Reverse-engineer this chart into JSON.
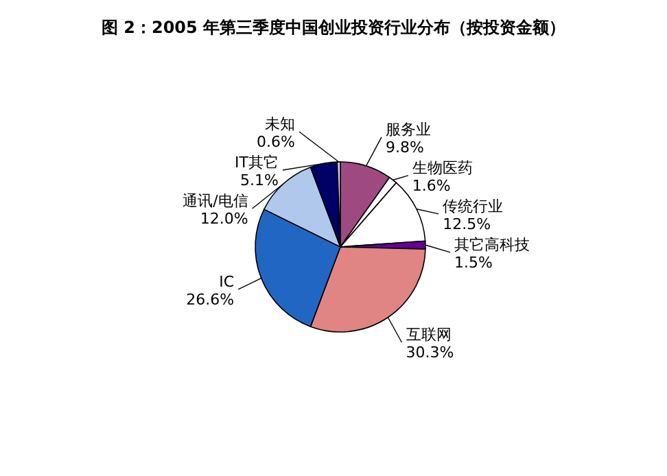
{
  "chart_data": {
    "type": "pie",
    "title": "图 2：2005 年第三季度中国创业投资行业分布（按投资金额）",
    "categories": [
      "服务业",
      "生物医药",
      "传统行业",
      "其它高科技",
      "互联网",
      "IC",
      "通讯/电信",
      "IT其它",
      "未知"
    ],
    "values": [
      9.8,
      1.6,
      12.5,
      1.5,
      30.3,
      26.6,
      12.0,
      5.1,
      0.6
    ],
    "colors": [
      "#9e4a80",
      "#ffffff",
      "#ffffff",
      "#660099",
      "#e08484",
      "#2266c4",
      "#b0c8ec",
      "#000066",
      "#ccccff"
    ],
    "value_labels": [
      "9.8%",
      "1.6%",
      "12.5%",
      "1.5%",
      "30.3%",
      "26.6%",
      "12.0%",
      "5.1%",
      "0.6%"
    ],
    "legend": false
  }
}
